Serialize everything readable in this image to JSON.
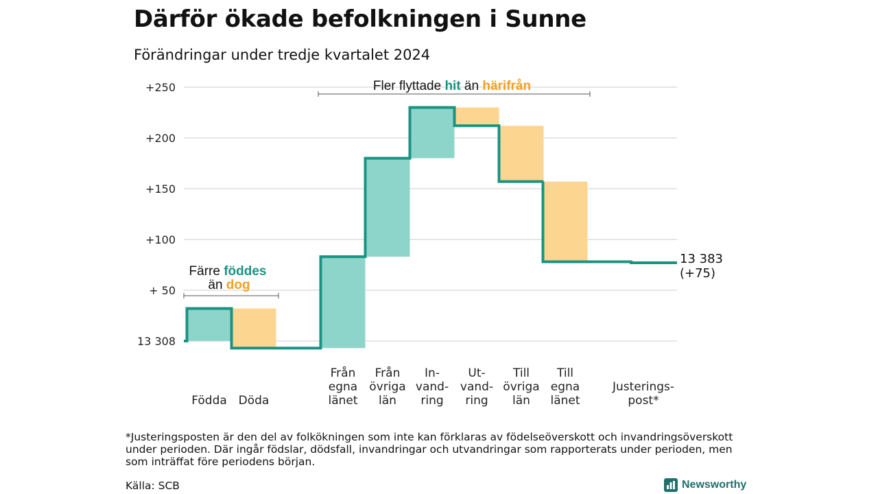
{
  "title": "Därför ökade befolkningen i Sunne",
  "subtitle": "Förändringar under tredje kvartalet 2024",
  "colors": {
    "increase": "#8dd5ca",
    "decrease": "#fcd690",
    "line": "#1a9382",
    "teal_text": "#1a9382",
    "orange_text": "#f0a025",
    "grid": "#dddddd"
  },
  "chart_data": {
    "type": "waterfall",
    "base_value": 13308,
    "y_ticks": [
      {
        "value": 0,
        "label": "13 308"
      },
      {
        "value": 50,
        "label": "+ 50"
      },
      {
        "value": 100,
        "label": "+100"
      },
      {
        "value": 150,
        "label": "+150"
      },
      {
        "value": 200,
        "label": "+200"
      },
      {
        "value": 250,
        "label": "+250"
      }
    ],
    "ylim": [
      -10,
      250
    ],
    "steps": [
      {
        "lines": [
          "Födda"
        ],
        "change": 32
      },
      {
        "lines": [
          "Döda"
        ],
        "change": -39
      },
      {
        "lines": [
          "Från",
          "egna",
          "länet"
        ],
        "change": 90
      },
      {
        "lines": [
          "Från",
          "övriga",
          "län"
        ],
        "change": 97
      },
      {
        "lines": [
          "In-",
          "vand-",
          "ring"
        ],
        "change": 50
      },
      {
        "lines": [
          "Ut-",
          "vand-",
          "ring"
        ],
        "change": -18
      },
      {
        "lines": [
          "Till",
          "övriga",
          "län"
        ],
        "change": -55
      },
      {
        "lines": [
          "Till",
          "egna",
          "länet"
        ],
        "change": -79
      },
      {
        "lines": [
          "Justerings-",
          "post*"
        ],
        "change": -1
      }
    ],
    "end_label": {
      "value": "13 383",
      "change": "(+75)"
    },
    "annotations": [
      {
        "parts": [
          "Färre ",
          "föddes"
        ],
        "line2": [
          "än ",
          "dog"
        ]
      },
      {
        "parts": [
          "Fler flyttade ",
          "hit",
          " än ",
          "härifrån"
        ]
      }
    ]
  },
  "footnote": "*Justeringsposten är den del av folkökningen som inte kan förklaras av födelseöverskott och invandringsöverskott under perioden. Där ingår födslar, dödsfall, invandringar och utvandringar som rapporterats under perioden, men som inträffat före periodens början.",
  "source": "Källa: SCB",
  "brand": {
    "name": "Newsworthy",
    "icon": "bar-chart-icon"
  }
}
